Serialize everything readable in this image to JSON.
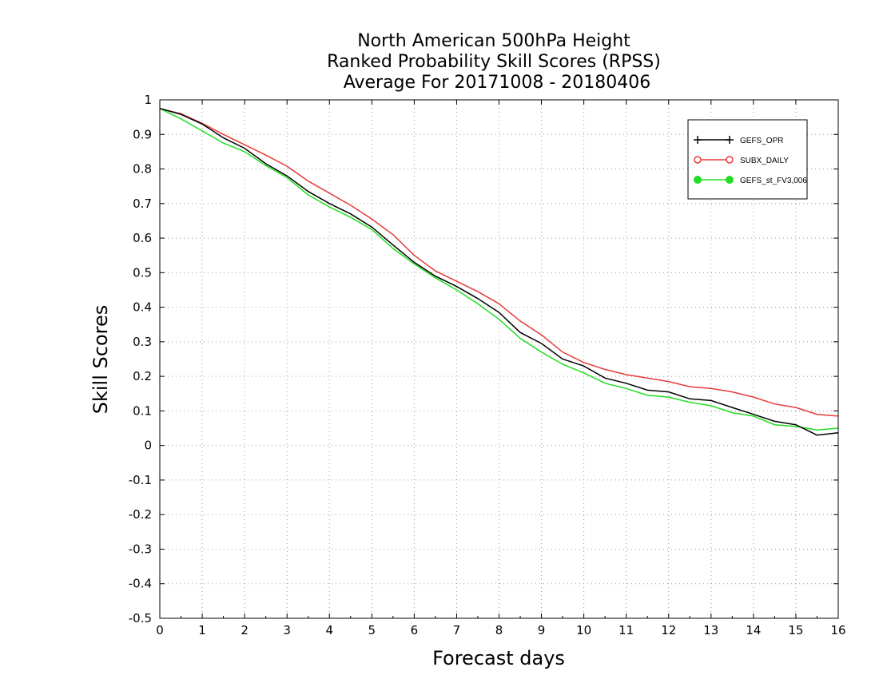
{
  "chart_data": {
    "type": "line",
    "title_lines": [
      "North American 500hPa Height",
      "Ranked Probability Skill Scores (RPSS)",
      "Average For 20171008 - 20180406"
    ],
    "xlabel": "Forecast days",
    "ylabel": "Skill Scores",
    "xlim": [
      0,
      16
    ],
    "ylim": [
      -0.5,
      1
    ],
    "xticks": [
      "0",
      "1",
      "2",
      "3",
      "4",
      "5",
      "6",
      "7",
      "8",
      "9",
      "10",
      "11",
      "12",
      "13",
      "14",
      "15",
      "16"
    ],
    "yticks": [
      "-0.5",
      "-0.4",
      "-0.3",
      "-0.2",
      "-0.1",
      "0",
      "0.1",
      "0.2",
      "0.3",
      "0.4",
      "0.5",
      "0.6",
      "0.7",
      "0.8",
      "0.9",
      "1"
    ],
    "grid": true,
    "legend_position": "top-right",
    "x": [
      0,
      0.5,
      1,
      1.5,
      2,
      2.5,
      3,
      3.5,
      4,
      4.5,
      5,
      5.5,
      6,
      6.5,
      7,
      7.5,
      8,
      8.5,
      9,
      9.5,
      10,
      10.5,
      11,
      11.5,
      12,
      12.5,
      13,
      13.5,
      14,
      14.5,
      15,
      15.5,
      16
    ],
    "series": [
      {
        "name": "GEFS_OPR",
        "color": "#000000",
        "marker": "plus",
        "values": [
          0.975,
          0.958,
          0.93,
          0.89,
          0.86,
          0.815,
          0.78,
          0.735,
          0.7,
          0.67,
          0.632,
          0.58,
          0.53,
          0.49,
          0.46,
          0.425,
          0.385,
          0.327,
          0.295,
          0.25,
          0.23,
          0.195,
          0.18,
          0.16,
          0.155,
          0.135,
          0.13,
          0.11,
          0.09,
          0.07,
          0.06,
          0.03,
          0.037
        ]
      },
      {
        "name": "SUBX_DAILY",
        "color": "#e83a3a",
        "marker": "open-circle",
        "values": [
          0.975,
          0.96,
          0.932,
          0.9,
          0.87,
          0.84,
          0.808,
          0.765,
          0.73,
          0.695,
          0.655,
          0.61,
          0.55,
          0.505,
          0.475,
          0.445,
          0.41,
          0.36,
          0.32,
          0.27,
          0.24,
          0.22,
          0.205,
          0.195,
          0.185,
          0.17,
          0.165,
          0.155,
          0.14,
          0.12,
          0.11,
          0.09,
          0.085
        ]
      },
      {
        "name": "GEFS_st_FV3,006",
        "color": "#22dd22",
        "marker": "filled-circle",
        "values": [
          0.975,
          0.945,
          0.91,
          0.875,
          0.85,
          0.81,
          0.775,
          0.725,
          0.69,
          0.66,
          0.625,
          0.57,
          0.525,
          0.485,
          0.45,
          0.41,
          0.365,
          0.31,
          0.27,
          0.235,
          0.21,
          0.18,
          0.165,
          0.145,
          0.14,
          0.125,
          0.115,
          0.095,
          0.085,
          0.06,
          0.055,
          0.045,
          0.05
        ]
      }
    ]
  }
}
